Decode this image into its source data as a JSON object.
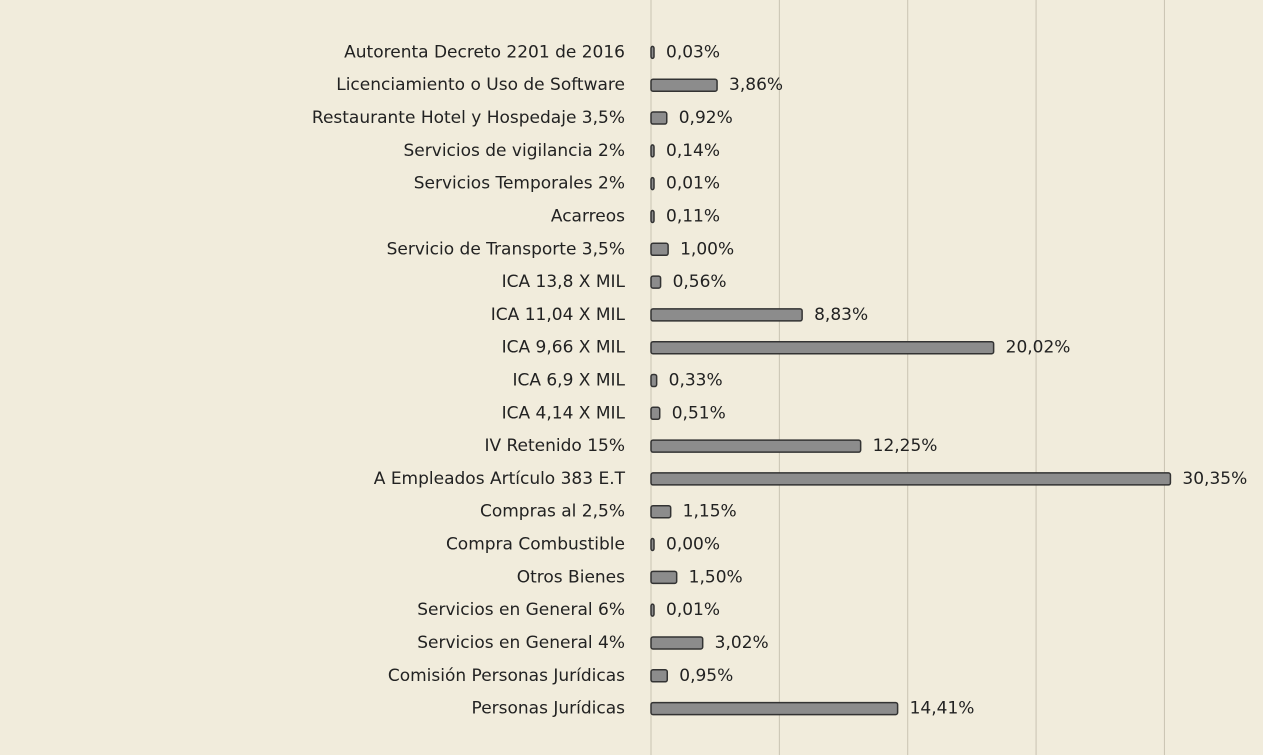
{
  "chart_data": {
    "type": "bar",
    "orientation": "horizontal",
    "categories": [
      "Autorenta Decreto 2201 de 2016",
      "Licenciamiento o Uso de Software",
      "Restaurante Hotel y Hospedaje 3,5%",
      "Servicios de vigilancia 2%",
      "Servicios Temporales 2%",
      "Acarreos",
      "Servicio de Transporte 3,5%",
      "ICA 13,8 X MIL",
      "ICA 11,04 X MIL",
      "ICA 9,66 X MIL",
      "ICA 6,9 X MIL",
      "ICA 4,14 X MIL",
      "IV Retenido 15%",
      "A Empleados Artículo 383 E.T",
      "Compras al 2,5%",
      "Compra Combustible",
      "Otros Bienes",
      "Servicios en General 6%",
      "Servicios en General 4%",
      "Comisión Personas Jurídicas",
      "Personas Jurídicas"
    ],
    "values": [
      0.03,
      3.86,
      0.92,
      0.14,
      0.01,
      0.11,
      1.0,
      0.56,
      8.83,
      20.02,
      0.33,
      0.51,
      12.25,
      30.35,
      1.15,
      0.0,
      1.5,
      0.01,
      3.02,
      0.95,
      14.41
    ],
    "value_labels": [
      "0,03%",
      "3,86%",
      "0,92%",
      "0,14%",
      "0,01%",
      "0,11%",
      "1,00%",
      "0,56%",
      "8,83%",
      "20,02%",
      "0,33%",
      "0,51%",
      "12,25%",
      "30,35%",
      "1,15%",
      "0,00%",
      "1,50%",
      "0,01%",
      "3,02%",
      "0,95%",
      "14,41%"
    ],
    "color": "#8c8c8c",
    "xlim": [
      0,
      35
    ],
    "xticks": [
      0,
      7.5,
      15,
      22.5,
      30
    ],
    "grid": true
  }
}
